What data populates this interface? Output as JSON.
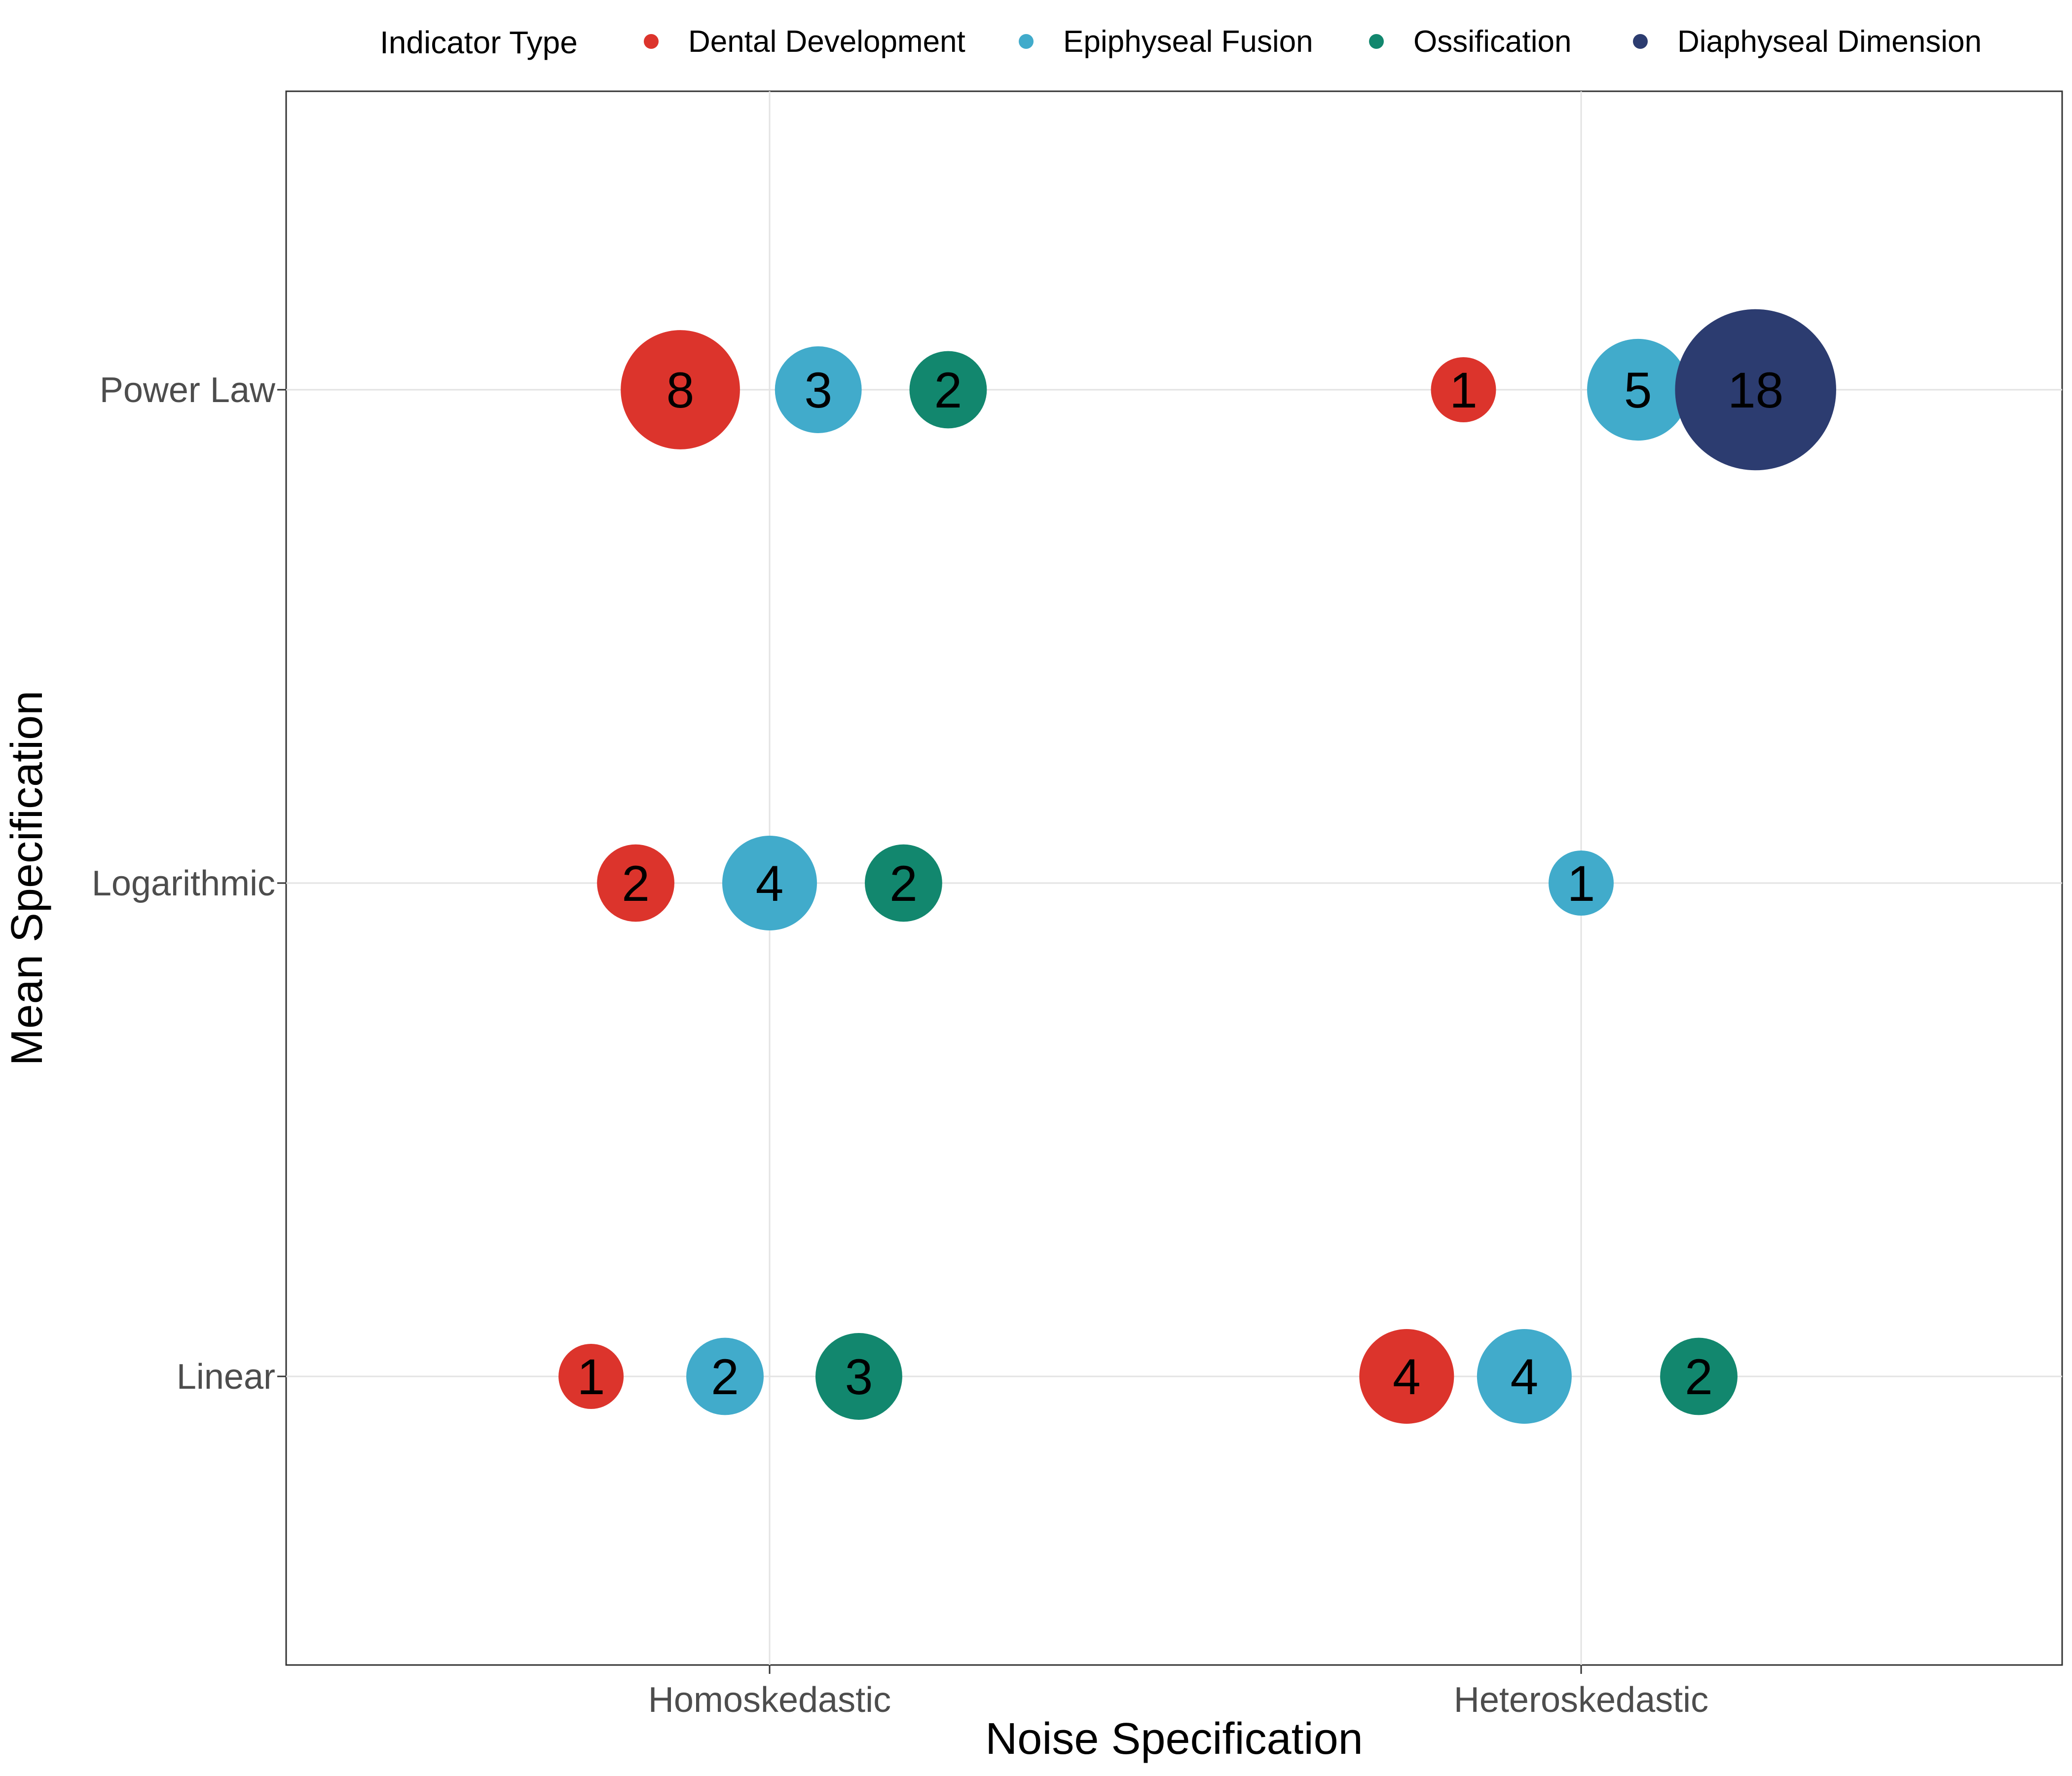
{
  "chart_data": {
    "type": "scatter",
    "xlabel": "Noise Specification",
    "ylabel": "Mean Specification",
    "x_categories": [
      "Homoskedastic",
      "Heteroskedastic"
    ],
    "y_categories": [
      "Linear",
      "Logarithmic",
      "Power Law"
    ],
    "grid": true,
    "legend": {
      "title": "Indicator Type",
      "placement": "top",
      "entries": [
        "Dental Development",
        "Epiphyseal Fusion",
        "Ossification",
        "Diaphyseal Dimension"
      ]
    },
    "colors": {
      "Dental Development": "#DC342C",
      "Epiphyseal Fusion": "#41ABCB",
      "Ossification": "#12876E",
      "Diaphyseal Dimension": "#2C3C70"
    },
    "points": [
      {
        "noise": "Homoskedastic",
        "mean": "Power Law",
        "offset": -0.11,
        "type": "Dental Development",
        "count": 8
      },
      {
        "noise": "Homoskedastic",
        "mean": "Power Law",
        "offset": 0.06,
        "type": "Epiphyseal Fusion",
        "count": 3
      },
      {
        "noise": "Homoskedastic",
        "mean": "Power Law",
        "offset": 0.22,
        "type": "Ossification",
        "count": 2
      },
      {
        "noise": "Heteroskedastic",
        "mean": "Power Law",
        "offset": -0.145,
        "type": "Dental Development",
        "count": 1
      },
      {
        "noise": "Heteroskedastic",
        "mean": "Power Law",
        "offset": 0.07,
        "type": "Epiphyseal Fusion",
        "count": 5
      },
      {
        "noise": "Heteroskedastic",
        "mean": "Power Law",
        "offset": 0.215,
        "type": "Diaphyseal Dimension",
        "count": 18
      },
      {
        "noise": "Homoskedastic",
        "mean": "Logarithmic",
        "offset": -0.165,
        "type": "Dental Development",
        "count": 2
      },
      {
        "noise": "Homoskedastic",
        "mean": "Logarithmic",
        "offset": 0.0,
        "type": "Epiphyseal Fusion",
        "count": 4
      },
      {
        "noise": "Homoskedastic",
        "mean": "Logarithmic",
        "offset": 0.165,
        "type": "Ossification",
        "count": 2
      },
      {
        "noise": "Heteroskedastic",
        "mean": "Logarithmic",
        "offset": 0.0,
        "type": "Epiphyseal Fusion",
        "count": 1
      },
      {
        "noise": "Homoskedastic",
        "mean": "Linear",
        "offset": -0.22,
        "type": "Dental Development",
        "count": 1
      },
      {
        "noise": "Homoskedastic",
        "mean": "Linear",
        "offset": -0.055,
        "type": "Epiphyseal Fusion",
        "count": 2
      },
      {
        "noise": "Homoskedastic",
        "mean": "Linear",
        "offset": 0.11,
        "type": "Ossification",
        "count": 3
      },
      {
        "noise": "Heteroskedastic",
        "mean": "Linear",
        "offset": -0.215,
        "type": "Dental Development",
        "count": 4
      },
      {
        "noise": "Heteroskedastic",
        "mean": "Linear",
        "offset": -0.07,
        "type": "Epiphyseal Fusion",
        "count": 4
      },
      {
        "noise": "Heteroskedastic",
        "mean": "Linear",
        "offset": 0.145,
        "type": "Ossification",
        "count": 2
      }
    ]
  }
}
